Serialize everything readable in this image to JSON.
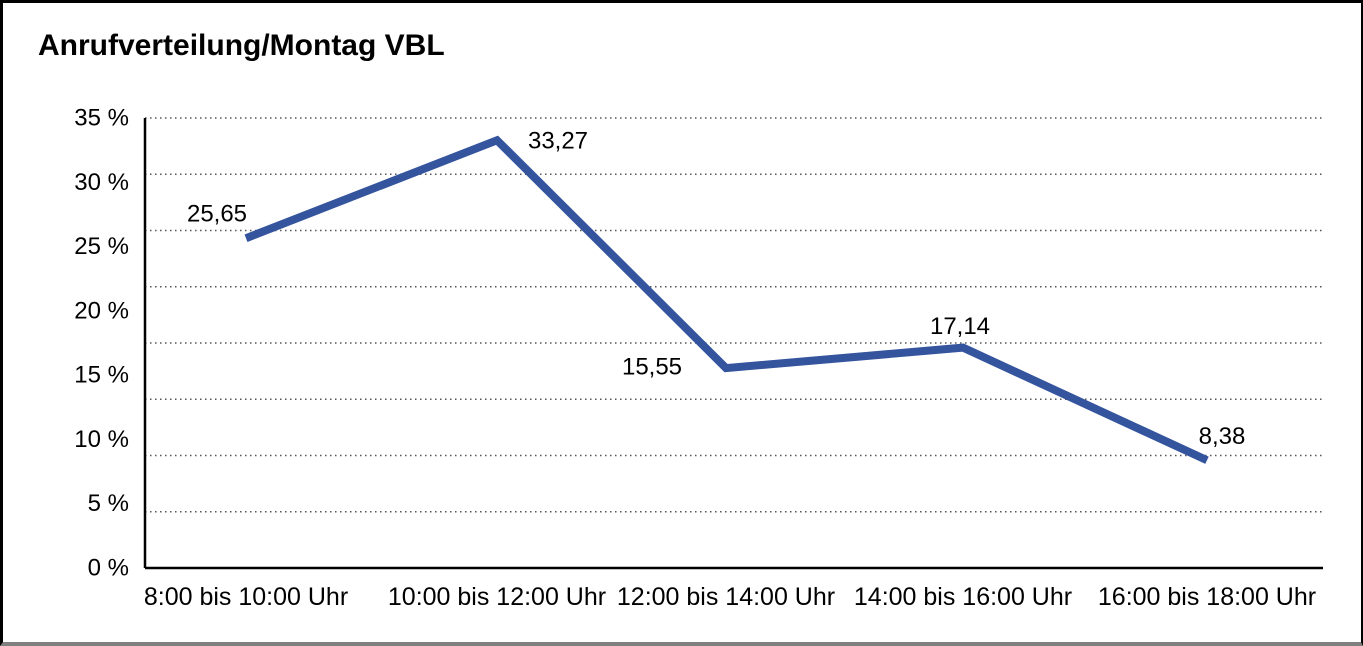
{
  "window": {
    "background": "#ffffff",
    "frame_color": "#000000",
    "frame_bottom_color": "#808080"
  },
  "chart_data": {
    "type": "line",
    "title": "Anrufverteilung/Montag VBL",
    "categories": [
      "8:00 bis 10:00 Uhr",
      "10:00 bis 12:00 Uhr",
      "12:00 bis 14:00 Uhr",
      "14:00 bis 16:00 Uhr",
      "16:00 bis 18:00 Uhr"
    ],
    "series": [
      {
        "values": [
          25.65,
          33.27,
          15.55,
          17.14,
          8.38
        ],
        "point_labels": [
          "25,65",
          "33,27",
          "15,55",
          "17,14",
          "8,38"
        ]
      }
    ],
    "ylim": [
      0,
      35
    ],
    "ytick_labels": [
      "35 %",
      "30 %",
      "25 %",
      "20 %",
      "15 %",
      "10 %",
      "5 %",
      "0 %"
    ],
    "xlabel": "",
    "ylabel": "",
    "grid": "horizontal-dotted",
    "grid_divisions": 8,
    "legend": "none",
    "colors": {
      "line": "#34549E",
      "text": "#000000",
      "gridline": "#555555",
      "axis": "#000000"
    }
  }
}
